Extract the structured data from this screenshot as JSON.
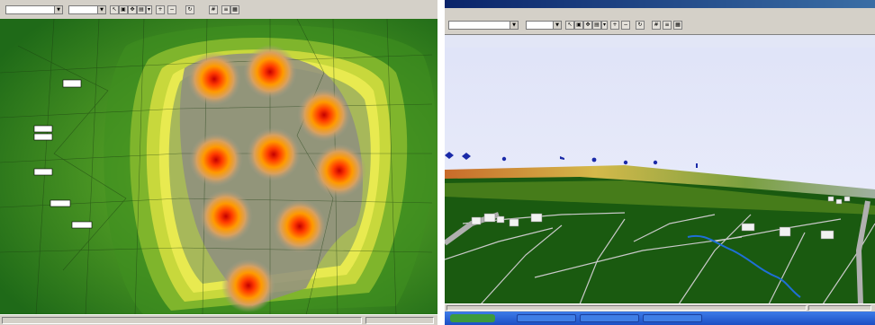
{
  "left_window": {
    "toolbar": {
      "layer_combo": "",
      "mode_combo": "",
      "buttons": [
        {
          "icon": "pointer-icon"
        },
        {
          "icon": "select-icon"
        },
        {
          "icon": "pan-icon"
        },
        {
          "icon": "zoom-box-icon"
        },
        {
          "icon": "dropdown-icon"
        },
        {
          "icon": "zoom-in-icon"
        },
        {
          "icon": "zoom-out-icon"
        },
        {
          "icon": "refresh-icon"
        },
        {
          "icon": "grid-icon"
        },
        {
          "icon": "layers-icon"
        },
        {
          "icon": "legend-icon"
        }
      ]
    },
    "map": {
      "colors": {
        "outer": "#2e7d1f",
        "mid": "#6fb12a",
        "yellow": "#e6e84a",
        "core": "#9a9a8a",
        "hot": "#ff6a00",
        "red": "#cc1a00"
      },
      "labels": [
        "",
        "",
        "",
        "",
        "",
        "",
        ""
      ]
    },
    "status": {
      "text": ""
    }
  },
  "right_window": {
    "title": "",
    "menu": [
      "",
      "",
      "",
      "",
      ""
    ],
    "toolbar": {
      "layer_combo": "",
      "mode_combo": ""
    },
    "subtabs": [
      "",
      "",
      "",
      ""
    ],
    "scene": {
      "colors": {
        "sky": "#e7eaf9",
        "terrain": "#1a5a10",
        "roads": "#c9c9c9",
        "river": "#1f6fd6",
        "markers": "#1a2aa8"
      }
    },
    "taskbar": {
      "start": "",
      "items": [
        "",
        "",
        ""
      ]
    }
  }
}
